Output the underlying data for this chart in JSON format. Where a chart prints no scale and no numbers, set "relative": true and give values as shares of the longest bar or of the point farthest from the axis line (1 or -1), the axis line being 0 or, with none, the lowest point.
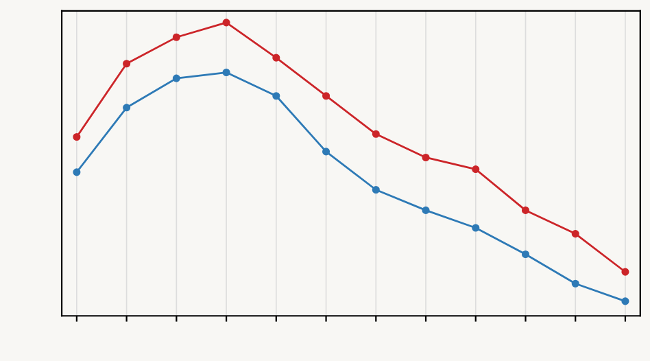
{
  "chart_data": {
    "type": "line",
    "relative": true,
    "categories": [
      null,
      null,
      null,
      null,
      null,
      null,
      null,
      null,
      null,
      null,
      null,
      null
    ],
    "series": [
      {
        "color": "#cc2529",
        "values": [
          0.61,
          0.86,
          0.95,
          1.0,
          0.88,
          0.75,
          0.62,
          0.54,
          0.5,
          0.36,
          0.28,
          0.15
        ]
      },
      {
        "color": "#2e7ab6",
        "values": [
          0.49,
          0.71,
          0.81,
          0.83,
          0.75,
          0.56,
          0.43,
          0.36,
          0.3,
          0.21,
          0.11,
          0.05
        ]
      }
    ],
    "grid": true,
    "marker": "circle",
    "line_style": "solid"
  }
}
